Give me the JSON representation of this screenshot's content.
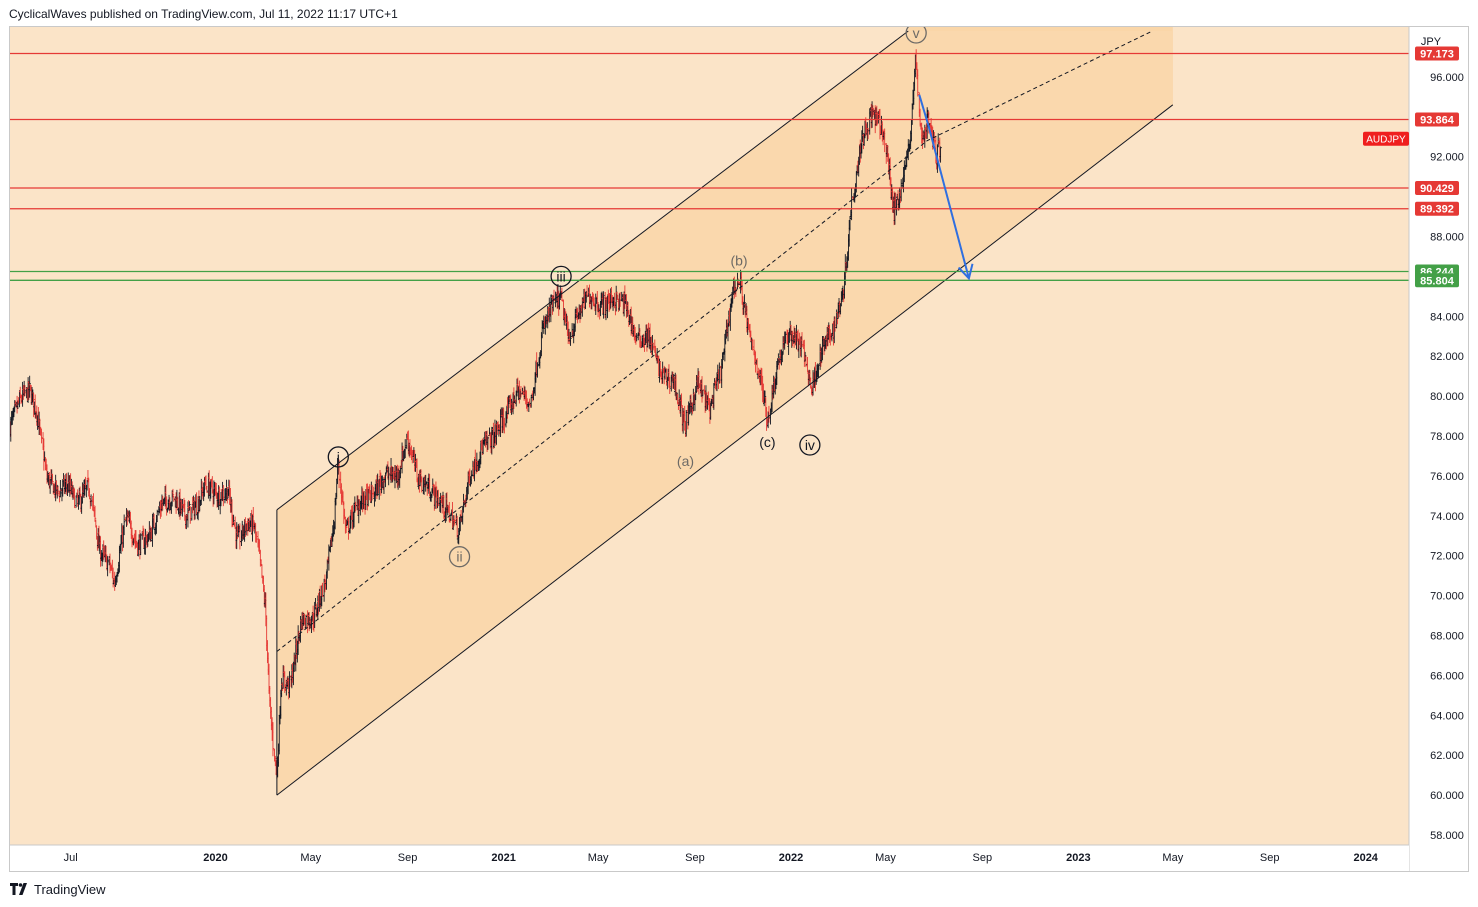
{
  "header": {
    "publisher_line": "CyclicalWaves published on TradingView.com, Jul 11, 2022 11:17 UTC+1"
  },
  "footer": {
    "brand": "TradingView",
    "logo_icon": "tradingview-logo-icon"
  },
  "colors": {
    "background": "#fbe4c8",
    "channel_fill": "#fad8ad",
    "projection_fill": "#fad6a8",
    "resistance_line": "#e53935",
    "support_line": "#43a047",
    "projection_arrow": "#2f6fe0",
    "candle_up": "#131722",
    "candle_down": "#e53935",
    "symbol_badge": "#ef1e1e"
  },
  "chart_data": {
    "type": "line",
    "symbol": "AUDJPY",
    "currency": "JPY",
    "y_range": [
      57.5,
      98.5
    ],
    "y_ticks": [
      "58.000",
      "60.000",
      "62.000",
      "64.000",
      "66.000",
      "68.000",
      "70.000",
      "72.000",
      "74.000",
      "76.000",
      "78.000",
      "80.000",
      "82.000",
      "84.000",
      "88.000",
      "92.000",
      "96.000"
    ],
    "x_ticks": [
      {
        "label": "Jul",
        "date": "2019-07-01"
      },
      {
        "label": "2020",
        "date": "2020-01-01"
      },
      {
        "label": "May",
        "date": "2020-05-01"
      },
      {
        "label": "Sep",
        "date": "2020-09-01"
      },
      {
        "label": "2021",
        "date": "2021-01-01"
      },
      {
        "label": "May",
        "date": "2021-05-01"
      },
      {
        "label": "Sep",
        "date": "2021-09-01"
      },
      {
        "label": "2022",
        "date": "2022-01-01"
      },
      {
        "label": "May",
        "date": "2022-05-01"
      },
      {
        "label": "Sep",
        "date": "2022-09-01"
      },
      {
        "label": "2023",
        "date": "2023-01-01"
      },
      {
        "label": "May",
        "date": "2023-05-01"
      },
      {
        "label": "Sep",
        "date": "2023-09-01"
      },
      {
        "label": "2024",
        "date": "2024-01-01"
      }
    ],
    "x_range": [
      "2019-04-15",
      "2024-02-25"
    ],
    "price_path": [
      [
        "2019-04-15",
        78.5
      ],
      [
        "2019-04-28",
        79.8
      ],
      [
        "2019-05-10",
        80.3
      ],
      [
        "2019-05-20",
        79.2
      ],
      [
        "2019-06-01",
        75.9
      ],
      [
        "2019-06-15",
        75.2
      ],
      [
        "2019-06-28",
        75.6
      ],
      [
        "2019-07-10",
        74.6
      ],
      [
        "2019-07-25",
        75.5
      ],
      [
        "2019-08-07",
        72.3
      ],
      [
        "2019-08-20",
        71.5
      ],
      [
        "2019-08-26",
        70.6
      ],
      [
        "2019-09-10",
        73.9
      ],
      [
        "2019-09-25",
        72.5
      ],
      [
        "2019-10-10",
        73.0
      ],
      [
        "2019-10-25",
        74.6
      ],
      [
        "2019-11-10",
        74.9
      ],
      [
        "2019-11-25",
        74.0
      ],
      [
        "2019-12-10",
        74.6
      ],
      [
        "2019-12-20",
        75.6
      ],
      [
        "2020-01-05",
        75.0
      ],
      [
        "2020-01-17",
        75.3
      ],
      [
        "2020-01-30",
        72.7
      ],
      [
        "2020-02-10",
        73.6
      ],
      [
        "2020-02-20",
        73.5
      ],
      [
        "2020-02-28",
        71.3
      ],
      [
        "2020-03-05",
        69.3
      ],
      [
        "2020-03-10",
        64.8
      ],
      [
        "2020-03-19",
        60.8
      ],
      [
        "2020-03-25",
        65.8
      ],
      [
        "2020-04-05",
        65.5
      ],
      [
        "2020-04-20",
        68.8
      ],
      [
        "2020-05-05",
        68.9
      ],
      [
        "2020-05-20",
        70.7
      ],
      [
        "2020-06-01",
        73.9
      ],
      [
        "2020-06-05",
        76.6
      ],
      [
        "2020-06-15",
        73.2
      ],
      [
        "2020-07-01",
        74.6
      ],
      [
        "2020-07-20",
        75.1
      ],
      [
        "2020-08-05",
        76.1
      ],
      [
        "2020-08-20",
        76.0
      ],
      [
        "2020-09-01",
        77.9
      ],
      [
        "2020-09-15",
        75.9
      ],
      [
        "2020-10-01",
        75.3
      ],
      [
        "2020-10-15",
        74.6
      ],
      [
        "2020-10-28",
        73.9
      ],
      [
        "2020-11-05",
        73.2
      ],
      [
        "2020-11-20",
        76.1
      ],
      [
        "2020-12-05",
        77.4
      ],
      [
        "2020-12-20",
        78.0
      ],
      [
        "2021-01-05",
        79.1
      ],
      [
        "2021-01-20",
        80.3
      ],
      [
        "2021-02-05",
        79.6
      ],
      [
        "2021-02-20",
        83.3
      ],
      [
        "2021-03-05",
        84.6
      ],
      [
        "2021-03-15",
        84.9
      ],
      [
        "2021-03-25",
        82.9
      ],
      [
        "2021-04-05",
        84.0
      ],
      [
        "2021-04-20",
        85.1
      ],
      [
        "2021-05-05",
        84.5
      ],
      [
        "2021-05-20",
        84.9
      ],
      [
        "2021-06-05",
        84.6
      ],
      [
        "2021-06-20",
        82.8
      ],
      [
        "2021-07-05",
        83.0
      ],
      [
        "2021-07-20",
        81.1
      ],
      [
        "2021-08-05",
        80.8
      ],
      [
        "2021-08-20",
        78.5
      ],
      [
        "2021-09-05",
        80.7
      ],
      [
        "2021-09-20",
        79.3
      ],
      [
        "2021-10-05",
        81.4
      ],
      [
        "2021-10-20",
        85.4
      ],
      [
        "2021-10-28",
        85.8
      ],
      [
        "2021-11-10",
        83.0
      ],
      [
        "2021-11-25",
        80.6
      ],
      [
        "2021-12-03",
        78.8
      ],
      [
        "2021-12-15",
        81.6
      ],
      [
        "2021-12-31",
        83.2
      ],
      [
        "2022-01-15",
        82.5
      ],
      [
        "2022-01-28",
        80.4
      ],
      [
        "2022-02-10",
        82.4
      ],
      [
        "2022-02-25",
        83.4
      ],
      [
        "2022-03-10",
        85.6
      ],
      [
        "2022-03-20",
        89.8
      ],
      [
        "2022-04-01",
        92.9
      ],
      [
        "2022-04-15",
        94.2
      ],
      [
        "2022-04-28",
        93.3
      ],
      [
        "2022-05-05",
        91.6
      ],
      [
        "2022-05-12",
        89.2
      ],
      [
        "2022-05-20",
        90.2
      ],
      [
        "2022-06-01",
        92.6
      ],
      [
        "2022-06-09",
        96.9
      ],
      [
        "2022-06-16",
        92.8
      ],
      [
        "2022-06-25",
        93.9
      ],
      [
        "2022-07-05",
        92.1
      ],
      [
        "2022-07-11",
        92.7
      ]
    ],
    "horizontal_levels": [
      {
        "value": 97.173,
        "label": "97.173",
        "kind": "resistance"
      },
      {
        "value": 93.864,
        "label": "93.864",
        "kind": "resistance"
      },
      {
        "value": 90.429,
        "label": "90.429",
        "kind": "resistance"
      },
      {
        "value": 89.392,
        "label": "89.392",
        "kind": "resistance"
      },
      {
        "value": 86.244,
        "label": "86.244",
        "kind": "support"
      },
      {
        "value": 85.804,
        "label": "85.804",
        "kind": "support"
      }
    ],
    "channel": {
      "lower": [
        [
          "2020-03-19",
          60.0
        ],
        [
          "2023-05-01",
          94.6
        ]
      ],
      "upper": [
        [
          "2020-03-19",
          74.3
        ],
        [
          "2022-05-30",
          98.3
        ]
      ],
      "median": [
        [
          "2020-03-19",
          67.2
        ],
        [
          "2022-06-23",
          92.8
        ],
        [
          "2023-04-05",
          98.3
        ]
      ],
      "fill_until": "2023-05-01"
    },
    "projection_path": [
      [
        "2022-06-13",
        95.1
      ],
      [
        "2022-06-25",
        93.5
      ],
      [
        "2022-08-15",
        85.9
      ]
    ],
    "wave_labels": [
      {
        "text": "i",
        "date": "2020-06-05",
        "value": 76.95,
        "circled": true
      },
      {
        "text": "ii",
        "date": "2020-11-06",
        "value": 71.95,
        "circled": true
      },
      {
        "text": "iii",
        "date": "2021-03-15",
        "value": 86.0,
        "circled": true
      },
      {
        "text": "(a)",
        "date": "2021-08-20",
        "value": 76.75,
        "circled": false
      },
      {
        "text": "(b)",
        "date": "2021-10-27",
        "value": 86.8,
        "circled": false
      },
      {
        "text": "(c)",
        "date": "2021-12-02",
        "value": 77.7,
        "circled": false
      },
      {
        "text": "iv",
        "date": "2022-01-25",
        "value": 77.55,
        "circled": true
      },
      {
        "text": "v",
        "date": "2022-06-09",
        "value": 98.2,
        "circled": true
      }
    ]
  }
}
